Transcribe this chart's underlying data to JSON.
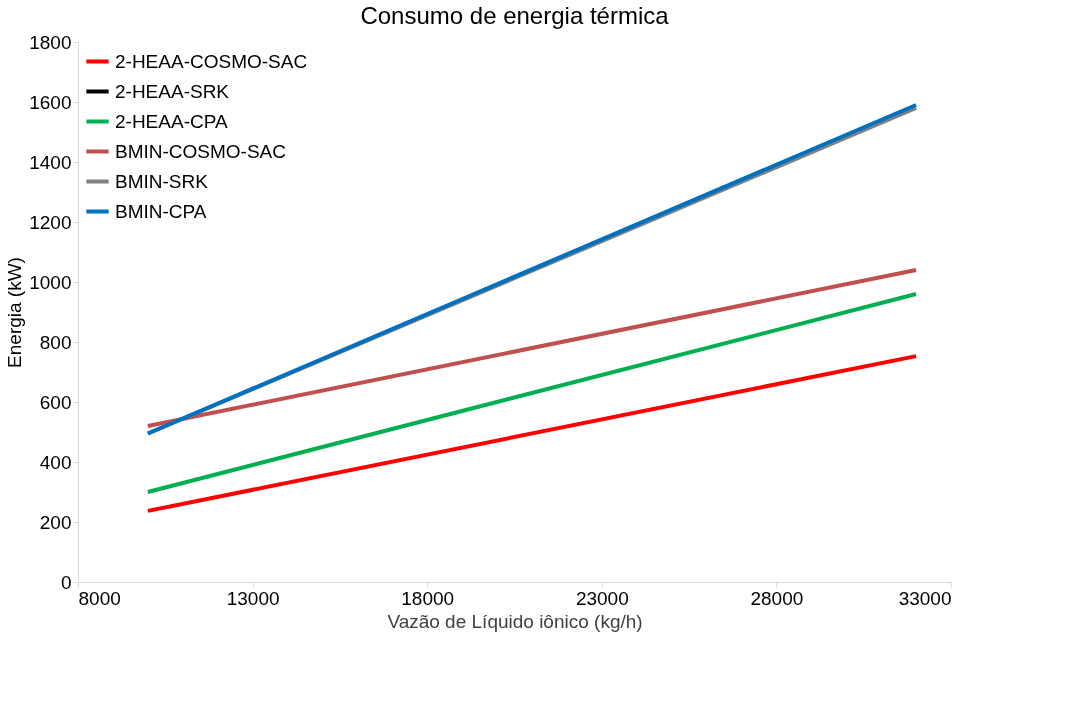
{
  "chart_data": {
    "type": "line",
    "title": "Consumo de energia térmica",
    "xlabel": "Vazão de Líquido iônico (kg/h)",
    "ylabel": "Energia (kW)",
    "x": [
      10000,
      32000
    ],
    "series": [
      {
        "name": "2-HEAA-COSMO-SAC",
        "color": "#ff0000",
        "values": [
          237,
          753
        ]
      },
      {
        "name": "2-HEAA-SRK",
        "color": "#000000",
        "values": [
          null,
          null
        ]
      },
      {
        "name": "2-HEAA-CPA",
        "color": "#00b050",
        "values": [
          300,
          960
        ]
      },
      {
        "name": "BMIN-COSMO-SAC",
        "color": "#c0504d",
        "values": [
          520,
          1040
        ]
      },
      {
        "name": "BMIN-SRK",
        "color": "#808080",
        "values": [
          495,
          1580
        ]
      },
      {
        "name": "BMIN-CPA",
        "color": "#0070c0",
        "values": [
          495,
          1590
        ]
      }
    ],
    "xlim": [
      8000,
      33000
    ],
    "xticks": [
      8000,
      13000,
      18000,
      23000,
      28000,
      33000
    ],
    "ylim": [
      0,
      1800
    ],
    "yticks": [
      0,
      200,
      400,
      600,
      800,
      1000,
      1200,
      1400,
      1600,
      1800
    ],
    "grid": false,
    "legend": "top left",
    "marker": "none",
    "line_style": "solid"
  }
}
